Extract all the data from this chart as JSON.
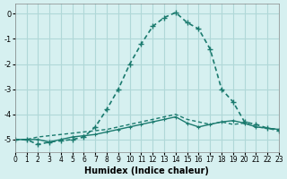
{
  "xlabel": "Humidex (Indice chaleur)",
  "ylabel": "",
  "bg_color": "#d6f0f0",
  "grid_color": "#b0d8d8",
  "line_color": "#1a7a6e",
  "xlim": [
    0,
    23
  ],
  "ylim": [
    -5.5,
    0.4
  ],
  "yticks": [
    0,
    -1,
    -2,
    -3,
    -4,
    -5
  ],
  "xticks": [
    0,
    1,
    2,
    3,
    4,
    5,
    6,
    7,
    8,
    9,
    10,
    11,
    12,
    13,
    14,
    15,
    16,
    17,
    18,
    19,
    20,
    21,
    22,
    23
  ],
  "series1_x": [
    0,
    1,
    2,
    3,
    4,
    5,
    6,
    7,
    8,
    9,
    10,
    11,
    12,
    13,
    14,
    15,
    16,
    17,
    18,
    19,
    20,
    21,
    22,
    23
  ],
  "series1_y": [
    -5.0,
    -5.0,
    -5.0,
    -5.1,
    -5.0,
    -4.9,
    -4.85,
    -4.8,
    -4.7,
    -4.6,
    -4.5,
    -4.4,
    -4.3,
    -4.2,
    -4.1,
    -4.35,
    -4.5,
    -4.4,
    -4.3,
    -4.25,
    -4.35,
    -4.5,
    -4.55,
    -4.6
  ],
  "series2_x": [
    0,
    1,
    2,
    3,
    4,
    5,
    6,
    7,
    8,
    9,
    10,
    11,
    12,
    13,
    14,
    15,
    16,
    17,
    18,
    19,
    20,
    21,
    22,
    23
  ],
  "series2_y": [
    -5.0,
    -5.0,
    -4.9,
    -4.85,
    -4.8,
    -4.75,
    -4.7,
    -4.65,
    -4.6,
    -4.5,
    -4.4,
    -4.3,
    -4.2,
    -4.1,
    -4.0,
    -4.2,
    -4.3,
    -4.4,
    -4.3,
    -4.4,
    -4.35,
    -4.5,
    -4.55,
    -4.6
  ],
  "series3_x": [
    0,
    1,
    2,
    3,
    4,
    5,
    6,
    7,
    8,
    9,
    10,
    11,
    12,
    13,
    14,
    15,
    16,
    17,
    18,
    19,
    20,
    21,
    22,
    23
  ],
  "series3_y": [
    -5.0,
    -5.0,
    -5.2,
    -5.1,
    -5.05,
    -5.0,
    -4.9,
    -4.5,
    -3.8,
    -3.0,
    -2.0,
    -1.2,
    -0.5,
    -0.15,
    0.05,
    -0.35,
    -0.6,
    -1.4,
    -3.0,
    -3.5,
    -4.3,
    -4.4,
    -4.55,
    -4.65
  ]
}
